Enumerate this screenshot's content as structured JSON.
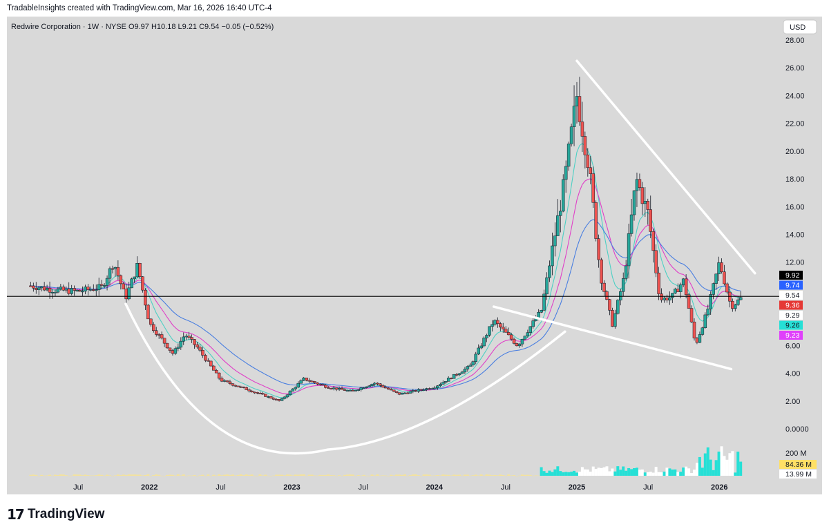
{
  "header": {
    "credit": "TradableInsights created with TradingView.com, Mar 16, 2026 16:40 UTC-4"
  },
  "footer": {
    "brand": "TradingView",
    "logo_icon": "tradingview-logo-icon"
  },
  "colors": {
    "background": "#d9d9d9",
    "up_candle": "#26a69a",
    "down_candle": "#ef5350",
    "ema_cyan": "#4dd0c4",
    "ema_magenta": "#e040c8",
    "ema_blue": "#4a7fe0",
    "trendline": "#ffffff",
    "price_line": "#000000"
  },
  "chart_data": {
    "type": "candlestick",
    "title": "Redwire Corporation · 1W · NYSE",
    "ohlc_legend": {
      "open": "O9.97",
      "high": "H10.18",
      "low": "L9.21",
      "close": "C9.54",
      "change": "−0.05 (−0.52%)"
    },
    "currency": "USD",
    "y_ticks": [
      "28.00",
      "26.00",
      "24.00",
      "22.00",
      "20.00",
      "18.00",
      "16.00",
      "14.00",
      "12.00",
      "6.00",
      "4.00",
      "2.00",
      "0.0000"
    ],
    "ylim": [
      0,
      28
    ],
    "x_ticks": [
      "Jul",
      "2022",
      "Jul",
      "2023",
      "Jul",
      "2024",
      "Jul",
      "2025",
      "Jul",
      "2026"
    ],
    "price_labels": [
      {
        "text": "9.92",
        "bg": "#000000",
        "fg": "#ffffff"
      },
      {
        "text": "9.74",
        "bg": "#2962ff",
        "fg": "#ffffff"
      },
      {
        "text": "9.54",
        "bg": "#ffffff",
        "fg": "#131722"
      },
      {
        "text": "9.36",
        "bg": "#e53935",
        "fg": "#ffffff"
      },
      {
        "text": "9.29",
        "bg": "#ffffff",
        "fg": "#131722"
      },
      {
        "text": "9.26",
        "bg": "#26e0d6",
        "fg": "#131722"
      },
      {
        "text": "9.23",
        "bg": "#e040fb",
        "fg": "#ffffff"
      }
    ],
    "volume": {
      "ticks": [
        "200 M"
      ],
      "labels": [
        {
          "text": "84.36 M",
          "bg": "#ffe066",
          "fg": "#131722"
        },
        {
          "text": "13.99 M",
          "bg": "#ffffff",
          "fg": "#131722"
        }
      ]
    },
    "last_close": 9.54,
    "anchors": [
      {
        "t": "2021-03",
        "p": 10.3
      },
      {
        "t": "2021-05",
        "p": 10.0
      },
      {
        "t": "2021-07",
        "p": 9.9
      },
      {
        "t": "2021-09",
        "p": 10.2
      },
      {
        "t": "2021-10",
        "p": 12.0
      },
      {
        "t": "2021-11",
        "p": 9.4
      },
      {
        "t": "2021-12",
        "p": 11.8
      },
      {
        "t": "2022-01",
        "p": 7.6
      },
      {
        "t": "2022-03",
        "p": 5.4
      },
      {
        "t": "2022-04",
        "p": 6.8
      },
      {
        "t": "2022-05",
        "p": 5.9
      },
      {
        "t": "2022-07",
        "p": 3.5
      },
      {
        "t": "2022-10",
        "p": 2.6
      },
      {
        "t": "2022-12",
        "p": 2.0
      },
      {
        "t": "2023-02",
        "p": 3.6
      },
      {
        "t": "2023-04",
        "p": 3.0
      },
      {
        "t": "2023-06",
        "p": 2.7
      },
      {
        "t": "2023-08",
        "p": 3.3
      },
      {
        "t": "2023-10",
        "p": 2.5
      },
      {
        "t": "2024-01",
        "p": 3.0
      },
      {
        "t": "2024-04",
        "p": 4.5
      },
      {
        "t": "2024-06",
        "p": 7.8
      },
      {
        "t": "2024-08",
        "p": 6.0
      },
      {
        "t": "2024-10",
        "p": 8.5
      },
      {
        "t": "2024-12",
        "p": 18.0
      },
      {
        "t": "2025-01",
        "p": 24.0
      },
      {
        "t": "2025-02",
        "p": 19.0
      },
      {
        "t": "2025-03",
        "p": 11.0
      },
      {
        "t": "2025-04",
        "p": 7.5
      },
      {
        "t": "2025-05",
        "p": 11.0
      },
      {
        "t": "2025-06",
        "p": 18.0
      },
      {
        "t": "2025-07",
        "p": 15.5
      },
      {
        "t": "2025-08",
        "p": 9.3
      },
      {
        "t": "2025-09",
        "p": 9.5
      },
      {
        "t": "2025-10",
        "p": 10.7
      },
      {
        "t": "2025-11",
        "p": 6.0
      },
      {
        "t": "2025-12",
        "p": 8.5
      },
      {
        "t": "2026-01",
        "p": 12.0
      },
      {
        "t": "2026-02",
        "p": 8.8
      },
      {
        "t": "2026-03",
        "p": 9.54
      }
    ],
    "x_range": [
      "2021-01",
      "2026-05"
    ],
    "grid": false,
    "legend": "top-left"
  }
}
